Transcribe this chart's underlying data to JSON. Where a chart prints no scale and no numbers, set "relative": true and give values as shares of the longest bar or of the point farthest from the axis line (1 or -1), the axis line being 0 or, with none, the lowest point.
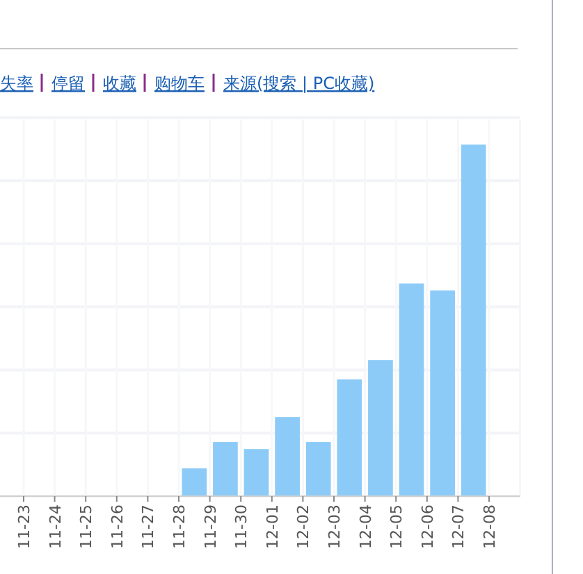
{
  "chart_data": {
    "type": "bar",
    "relative": true,
    "grid": true,
    "color": "#8ccbf7",
    "annotations": [
      "失率",
      "停留",
      "收藏",
      "购物车",
      "来源(搜索 | PC收藏)"
    ],
    "categories": [
      "11-23",
      "11-24",
      "11-25",
      "11-26",
      "11-27",
      "11-28",
      "11-29",
      "11-30",
      "12-01",
      "12-02",
      "12-03",
      "12-04",
      "12-05",
      "12-06",
      "12-07",
      "12-08"
    ],
    "values": [
      0,
      0,
      0,
      0,
      0,
      0.079,
      0.154,
      0.134,
      0.225,
      0.154,
      0.332,
      0.387,
      0.605,
      0.585,
      1,
      0
    ]
  }
}
